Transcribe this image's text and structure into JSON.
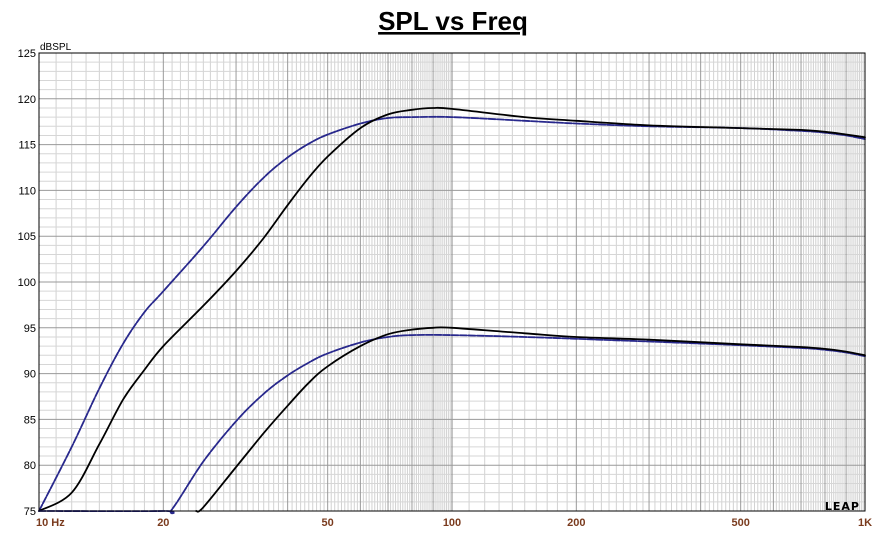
{
  "chart_data": {
    "type": "line",
    "title": "SPL vs Freq",
    "ylabel": "dBSPL",
    "xlabel": "",
    "xscale": "log",
    "xlim": [
      10,
      1000
    ],
    "ylim": [
      75,
      125
    ],
    "grid": true,
    "y_ticks": [
      "75",
      "80",
      "85",
      "90",
      "95",
      "100",
      "105",
      "110",
      "115",
      "120",
      "125"
    ],
    "x_ticks": [
      {
        "value": 10,
        "label": "10  Hz"
      },
      {
        "value": 20,
        "label": "20"
      },
      {
        "value": 50,
        "label": "50"
      },
      {
        "value": 100,
        "label": "100"
      },
      {
        "value": 200,
        "label": "200"
      },
      {
        "value": 500,
        "label": "500"
      },
      {
        "value": 1000,
        "label": "1K"
      }
    ],
    "logo": "LEAP",
    "series": [
      {
        "color": "#28288c",
        "dashed": true,
        "points": [
          [
            10,
            75
          ],
          [
            12,
            82
          ],
          [
            14,
            88.4
          ],
          [
            16,
            93.3
          ],
          [
            18,
            96.7
          ],
          [
            20,
            99
          ],
          [
            25,
            103.9
          ],
          [
            30,
            108.2
          ],
          [
            35,
            111.4
          ],
          [
            40,
            113.6
          ],
          [
            45,
            115.1
          ],
          [
            50,
            116.1
          ],
          [
            60,
            117.3
          ],
          [
            70,
            117.9
          ],
          [
            80,
            118
          ],
          [
            100,
            118
          ],
          [
            150,
            117.6
          ],
          [
            200,
            117.3
          ],
          [
            300,
            117
          ],
          [
            500,
            116.8
          ],
          [
            700,
            116.5
          ],
          [
            800,
            116.3
          ],
          [
            900,
            116
          ],
          [
            1000,
            115.6
          ]
        ]
      },
      {
        "color": "#000000",
        "dashed": false,
        "points": [
          [
            10,
            72
          ],
          [
            12,
            77
          ],
          [
            14,
            82.3
          ],
          [
            16,
            87.2
          ],
          [
            18,
            90.4
          ],
          [
            20,
            93
          ],
          [
            25,
            97.4
          ],
          [
            30,
            101.2
          ],
          [
            35,
            104.8
          ],
          [
            40,
            108.4
          ],
          [
            45,
            111.4
          ],
          [
            50,
            113.7
          ],
          [
            60,
            116.8
          ],
          [
            70,
            118.3
          ],
          [
            80,
            118.8
          ],
          [
            90,
            119
          ],
          [
            100,
            118.9
          ],
          [
            150,
            118
          ],
          [
            200,
            117.6
          ],
          [
            300,
            117.1
          ],
          [
            500,
            116.8
          ],
          [
            700,
            116.6
          ],
          [
            800,
            116.4
          ],
          [
            900,
            116.1
          ],
          [
            1000,
            115.8
          ]
        ]
      },
      {
        "color": "#28288c",
        "dashed": true,
        "points": [
          [
            10,
            75
          ],
          [
            20,
            75
          ],
          [
            21,
            75.2
          ],
          [
            25,
            80.4
          ],
          [
            30,
            84.8
          ],
          [
            35,
            87.8
          ],
          [
            40,
            89.8
          ],
          [
            45,
            91.2
          ],
          [
            50,
            92.2
          ],
          [
            60,
            93.4
          ],
          [
            70,
            94
          ],
          [
            80,
            94.2
          ],
          [
            100,
            94.2
          ],
          [
            150,
            94
          ],
          [
            200,
            93.8
          ],
          [
            300,
            93.5
          ],
          [
            500,
            93.1
          ],
          [
            700,
            92.8
          ],
          [
            800,
            92.6
          ],
          [
            900,
            92.3
          ],
          [
            1000,
            91.9
          ]
        ]
      },
      {
        "color": "#000000",
        "dashed": false,
        "points": [
          [
            24,
            74.8
          ],
          [
            25,
            75.4
          ],
          [
            30,
            79.8
          ],
          [
            35,
            83.5
          ],
          [
            40,
            86.5
          ],
          [
            45,
            89
          ],
          [
            50,
            90.8
          ],
          [
            60,
            93
          ],
          [
            70,
            94.3
          ],
          [
            80,
            94.8
          ],
          [
            90,
            95
          ],
          [
            100,
            95
          ],
          [
            150,
            94.4
          ],
          [
            200,
            94
          ],
          [
            300,
            93.7
          ],
          [
            500,
            93.2
          ],
          [
            700,
            92.9
          ],
          [
            800,
            92.7
          ],
          [
            900,
            92.4
          ],
          [
            1000,
            92
          ]
        ]
      }
    ]
  }
}
